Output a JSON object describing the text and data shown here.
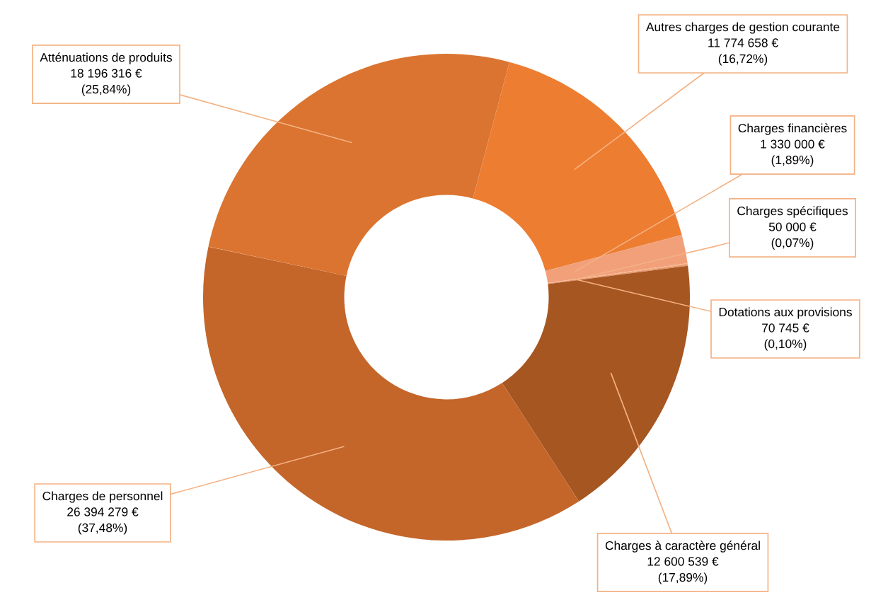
{
  "chart_data": {
    "type": "donut",
    "categories": [
      "Autres charges de gestion courante",
      "Charges financières",
      "Charges spécifiques",
      "Dotations aux provisions",
      "Charges à caractère général",
      "Charges de personnel",
      "Atténuations de produits"
    ],
    "values": [
      11774658,
      1330000,
      50000,
      70745,
      12600539,
      26394279,
      18196316
    ],
    "value_labels": [
      "11 774 658 €\n(16,72%)",
      "1 330 000 €\n(1,89%)",
      "50 000 €\n(0,07%)",
      "70 745 €\n(0,10%)",
      "12 600 539 €\n(17,89%)",
      "26 394 279 €\n(37,48%)",
      "18 196 316 €\n(25,84%)"
    ],
    "colors": [
      "#ed7d31",
      "#f1a07a",
      "#f4b183",
      "#e8946a",
      "#a65621",
      "#c4652a",
      "#da7430"
    ]
  }
}
